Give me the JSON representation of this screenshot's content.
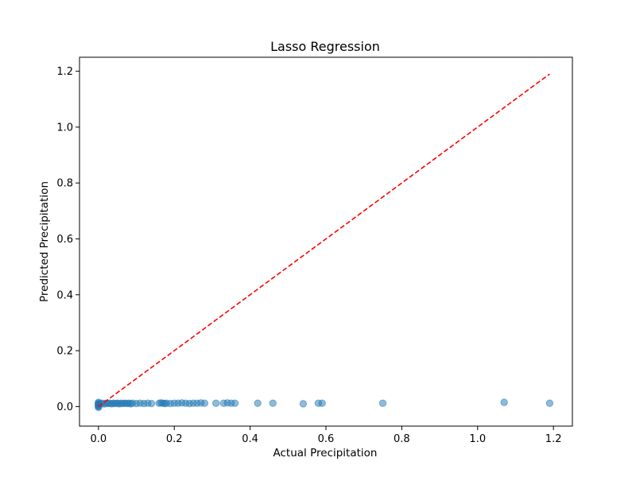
{
  "chart_data": {
    "type": "scatter",
    "title": "Lasso Regression",
    "xlabel": "Actual Precipitation",
    "ylabel": "Predicted Precipitation",
    "xlim": [
      -0.05,
      1.25
    ],
    "ylim": [
      -0.07,
      1.25
    ],
    "xticks": [
      0.0,
      0.2,
      0.4,
      0.6,
      0.8,
      1.0,
      1.2
    ],
    "xtick_labels": [
      "0.0",
      "0.2",
      "0.4",
      "0.6",
      "0.8",
      "1.0",
      "1.2"
    ],
    "yticks": [
      0.0,
      0.2,
      0.4,
      0.6,
      0.8,
      1.0,
      1.2
    ],
    "ytick_labels": [
      "0.0",
      "0.2",
      "0.4",
      "0.6",
      "0.8",
      "1.0",
      "1.2"
    ],
    "grid": false,
    "colors": {
      "points": "#1f77b4",
      "reference_line": "#ff0000"
    },
    "reference_line": {
      "style": "dashed",
      "x": [
        0.0,
        1.19
      ],
      "y": [
        0.0,
        1.19
      ]
    },
    "series": [
      {
        "points": [
          [
            0.0,
            0.0
          ],
          [
            0.0,
            0.003
          ],
          [
            0.0,
            0.006
          ],
          [
            0.0,
            0.009
          ],
          [
            0.0,
            0.012
          ],
          [
            0.0,
            0.015
          ],
          [
            0.0,
            -0.003
          ],
          [
            0.005,
            0.01
          ],
          [
            0.01,
            0.012
          ],
          [
            0.015,
            0.009
          ],
          [
            0.02,
            0.012
          ],
          [
            0.025,
            0.011
          ],
          [
            0.03,
            0.012
          ],
          [
            0.035,
            0.01
          ],
          [
            0.04,
            0.012
          ],
          [
            0.045,
            0.011
          ],
          [
            0.05,
            0.012
          ],
          [
            0.055,
            0.01
          ],
          [
            0.06,
            0.012
          ],
          [
            0.065,
            0.011
          ],
          [
            0.07,
            0.012
          ],
          [
            0.075,
            0.011
          ],
          [
            0.08,
            0.012
          ],
          [
            0.085,
            0.01
          ],
          [
            0.09,
            0.012
          ],
          [
            0.1,
            0.011
          ],
          [
            0.11,
            0.012
          ],
          [
            0.12,
            0.011
          ],
          [
            0.13,
            0.012
          ],
          [
            0.14,
            0.011
          ],
          [
            0.16,
            0.012
          ],
          [
            0.165,
            0.013
          ],
          [
            0.17,
            0.012
          ],
          [
            0.175,
            0.011
          ],
          [
            0.18,
            0.012
          ],
          [
            0.19,
            0.011
          ],
          [
            0.2,
            0.012
          ],
          [
            0.21,
            0.012
          ],
          [
            0.22,
            0.013
          ],
          [
            0.23,
            0.012
          ],
          [
            0.24,
            0.011
          ],
          [
            0.25,
            0.012
          ],
          [
            0.26,
            0.012
          ],
          [
            0.27,
            0.013
          ],
          [
            0.28,
            0.012
          ],
          [
            0.31,
            0.012
          ],
          [
            0.33,
            0.012
          ],
          [
            0.34,
            0.013
          ],
          [
            0.35,
            0.012
          ],
          [
            0.36,
            0.012
          ],
          [
            0.42,
            0.012
          ],
          [
            0.46,
            0.012
          ],
          [
            0.54,
            0.01
          ],
          [
            0.58,
            0.012
          ],
          [
            0.59,
            0.012
          ],
          [
            0.75,
            0.012
          ],
          [
            1.07,
            0.015
          ],
          [
            1.19,
            0.012
          ]
        ]
      }
    ]
  }
}
